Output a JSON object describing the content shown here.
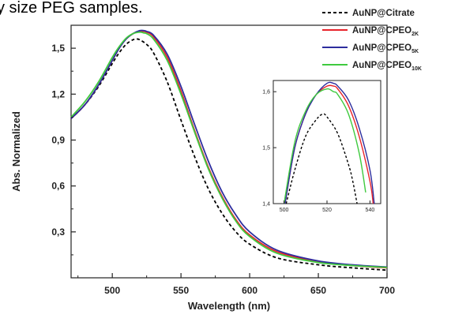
{
  "caption_fragment": "y size PEG samples.",
  "chart_data": {
    "type": "line",
    "xlabel": "Wavelength (nm)",
    "ylabel": "Abs. Normalized",
    "xlim": [
      470,
      700
    ],
    "ylim": [
      0.0,
      1.65
    ],
    "xticks": [
      500,
      550,
      600,
      650,
      700
    ],
    "xtick_labels": [
      "500",
      "550",
      "600",
      "650",
      "700"
    ],
    "yticks": [
      0.3,
      0.6,
      0.9,
      1.2,
      1.5
    ],
    "ytick_labels": [
      "0,3",
      "0,6",
      "0,9",
      "1,2",
      "1,5"
    ],
    "grid": false,
    "legend_position": "top-right",
    "series": [
      {
        "name": "AuNP@Citrate",
        "name_main": "AuNP@Citrate",
        "name_sub": "",
        "color": "#000000",
        "dash": "dashed",
        "x": [
          470,
          480,
          490,
          500,
          505,
          510,
          515,
          518,
          520,
          525,
          530,
          540,
          550,
          560,
          570,
          580,
          590,
          600,
          620,
          650,
          675,
          700
        ],
        "y": [
          1.04,
          1.13,
          1.25,
          1.4,
          1.47,
          1.525,
          1.555,
          1.56,
          1.555,
          1.525,
          1.47,
          1.28,
          1.03,
          0.79,
          0.58,
          0.42,
          0.3,
          0.22,
          0.13,
          0.085,
          0.065,
          0.05
        ]
      },
      {
        "name": "AuNP@CPEO2K",
        "name_main": "AuNP@CPEO",
        "name_sub": "2K",
        "color": "#e8242b",
        "dash": "solid",
        "x": [
          470,
          480,
          490,
          500,
          505,
          510,
          515,
          520,
          523,
          525,
          530,
          540,
          550,
          560,
          570,
          580,
          590,
          600,
          620,
          650,
          675,
          700
        ],
        "y": [
          1.04,
          1.13,
          1.26,
          1.42,
          1.5,
          1.56,
          1.595,
          1.61,
          1.61,
          1.605,
          1.575,
          1.44,
          1.22,
          0.96,
          0.72,
          0.53,
          0.38,
          0.28,
          0.17,
          0.105,
          0.08,
          0.065
        ]
      },
      {
        "name": "AuNP@CPEO5K",
        "name_main": "AuNP@CPEO",
        "name_sub": "5K",
        "color": "#2d2d9e",
        "dash": "solid",
        "x": [
          470,
          480,
          490,
          500,
          505,
          510,
          515,
          520,
          523,
          525,
          530,
          540,
          550,
          560,
          570,
          580,
          590,
          600,
          620,
          650,
          675,
          700
        ],
        "y": [
          1.04,
          1.13,
          1.26,
          1.42,
          1.5,
          1.56,
          1.595,
          1.615,
          1.615,
          1.61,
          1.585,
          1.46,
          1.25,
          1.0,
          0.76,
          0.56,
          0.41,
          0.3,
          0.18,
          0.11,
          0.085,
          0.07
        ]
      },
      {
        "name": "AuNP@CPEO10K",
        "name_main": "AuNP@CPEO",
        "name_sub": "10K",
        "color": "#3fca3f",
        "dash": "solid",
        "x": [
          470,
          480,
          490,
          500,
          505,
          510,
          515,
          520,
          523,
          525,
          530,
          540,
          550,
          560,
          570,
          580,
          590,
          600,
          620,
          650,
          675,
          700
        ],
        "y": [
          1.05,
          1.15,
          1.28,
          1.44,
          1.51,
          1.565,
          1.595,
          1.605,
          1.6,
          1.595,
          1.56,
          1.42,
          1.2,
          0.95,
          0.71,
          0.52,
          0.37,
          0.27,
          0.16,
          0.1,
          0.08,
          0.068
        ]
      }
    ],
    "inset": {
      "xlim": [
        495,
        545
      ],
      "ylim": [
        1.4,
        1.62
      ],
      "xticks": [
        500,
        520,
        540
      ],
      "xtick_labels": [
        "500",
        "520",
        "540"
      ],
      "yticks": [
        1.4,
        1.5,
        1.6
      ],
      "ytick_labels": [
        "1,4",
        "1,5",
        "1,6"
      ],
      "series": [
        {
          "name": "AuNP@Citrate",
          "color": "#000000",
          "dash": "dashed",
          "x": [
            501,
            505,
            510,
            515,
            518,
            520,
            525,
            530,
            532,
            534
          ],
          "y": [
            1.4,
            1.46,
            1.52,
            1.55,
            1.56,
            1.555,
            1.525,
            1.47,
            1.44,
            1.4
          ]
        },
        {
          "name": "AuNP@CPEO2K",
          "color": "#e8242b",
          "dash": "solid",
          "x": [
            500.5,
            505,
            510,
            515,
            520,
            523,
            525,
            530,
            535,
            540,
            541.5
          ],
          "y": [
            1.4,
            1.5,
            1.56,
            1.595,
            1.61,
            1.61,
            1.605,
            1.575,
            1.52,
            1.44,
            1.4
          ]
        },
        {
          "name": "AuNP@CPEO5K",
          "color": "#2d2d9e",
          "dash": "solid",
          "x": [
            500.5,
            505,
            510,
            515,
            520,
            523,
            525,
            530,
            535,
            540,
            542
          ],
          "y": [
            1.4,
            1.5,
            1.56,
            1.595,
            1.615,
            1.615,
            1.61,
            1.585,
            1.535,
            1.46,
            1.4
          ]
        },
        {
          "name": "AuNP@CPEO10K",
          "color": "#3fca3f",
          "dash": "solid",
          "x": [
            500,
            505,
            510,
            515,
            520,
            523,
            525,
            530,
            535,
            538
          ],
          "y": [
            1.4,
            1.51,
            1.565,
            1.595,
            1.605,
            1.6,
            1.595,
            1.56,
            1.49,
            1.42
          ]
        }
      ]
    }
  }
}
